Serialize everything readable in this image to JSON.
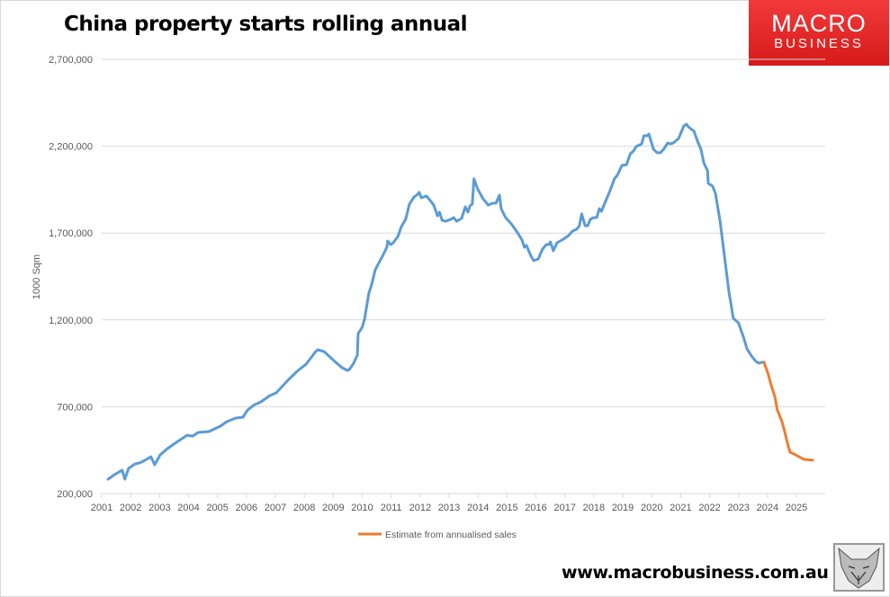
{
  "chart_data": {
    "type": "line",
    "title": "China property starts rolling annual",
    "ylabel": "1000 Sqm",
    "xlabel": "",
    "ylim": [
      200000,
      2700000
    ],
    "yticks": [
      200000,
      700000,
      1200000,
      1700000,
      2200000,
      2700000
    ],
    "ytick_labels": [
      "200,000",
      "700,000",
      "1,200,000",
      "1,700,000",
      "2,200,000",
      "2,700,000"
    ],
    "xlim": [
      2001,
      2026
    ],
    "xtick_labels": [
      "2001",
      "2002",
      "2003",
      "2004",
      "2005",
      "2006",
      "2007",
      "2008",
      "2009",
      "2010",
      "2011",
      "2012",
      "2013",
      "2014",
      "2015",
      "2016",
      "2017",
      "2018",
      "2019",
      "2020",
      "2021",
      "2022",
      "2023",
      "2024",
      "2025"
    ],
    "grid": "horizontal",
    "legend_position": "bottom",
    "series": [
      {
        "color": "#5b9bd5",
        "x": [
          2001.22,
          2001.44,
          2001.71,
          2001.8,
          2001.93,
          2002.15,
          2002.3,
          2002.5,
          2002.7,
          2002.83,
          2003.02,
          2003.27,
          2003.58,
          2003.95,
          2004.14,
          2004.33,
          2004.7,
          2005.1,
          2005.32,
          2005.63,
          2005.88,
          2006.04,
          2006.28,
          2006.5,
          2006.81,
          2007.03,
          2007.43,
          2007.75,
          2008.06,
          2008.37,
          2008.46,
          2008.68,
          2009.05,
          2009.3,
          2009.49,
          2009.55,
          2009.7,
          2009.83,
          2009.86,
          2010.0,
          2010.08,
          2010.23,
          2010.33,
          2010.45,
          2010.7,
          2010.85,
          2010.88,
          2010.98,
          2011.07,
          2011.23,
          2011.35,
          2011.5,
          2011.63,
          2011.79,
          2011.88,
          2011.97,
          2012.04,
          2012.22,
          2012.35,
          2012.47,
          2012.6,
          2012.67,
          2012.76,
          2012.88,
          2013.06,
          2013.16,
          2013.26,
          2013.43,
          2013.56,
          2013.65,
          2013.72,
          2013.8,
          2013.86,
          2013.98,
          2014.17,
          2014.35,
          2014.5,
          2014.62,
          2014.74,
          2014.8,
          2014.95,
          2015.15,
          2015.33,
          2015.52,
          2015.6,
          2015.67,
          2015.83,
          2015.92,
          2016.08,
          2016.23,
          2016.36,
          2016.45,
          2016.5,
          2016.6,
          2016.73,
          2016.95,
          2017.13,
          2017.26,
          2017.41,
          2017.5,
          2017.58,
          2017.7,
          2017.79,
          2017.88,
          2018.0,
          2018.1,
          2018.19,
          2018.26,
          2018.38,
          2018.56,
          2018.71,
          2018.81,
          2018.97,
          2019.13,
          2019.26,
          2019.37,
          2019.46,
          2019.65,
          2019.73,
          2019.84,
          2019.9,
          2020.06,
          2020.19,
          2020.3,
          2020.43,
          2020.55,
          2020.65,
          2020.74,
          2020.93,
          2021.11,
          2021.2,
          2021.27,
          2021.46,
          2021.58,
          2021.7,
          2021.8,
          2021.93,
          2021.95,
          2022.1,
          2022.2,
          2022.36,
          2022.52,
          2022.67,
          2022.82,
          2023.0,
          2023.1,
          2023.17,
          2023.29,
          2023.45,
          2023.6,
          2023.7,
          2023.82,
          2023.88
        ],
        "y": [
          283000,
          309000,
          335000,
          283000,
          345000,
          371000,
          376000,
          392000,
          412000,
          366000,
          423000,
          459000,
          495000,
          536000,
          531000,
          552000,
          557000,
          588000,
          614000,
          635000,
          640000,
          681000,
          712000,
          728000,
          764000,
          780000,
          852000,
          904000,
          945000,
          1013000,
          1028000,
          1018000,
          961000,
          925000,
          909000,
          914000,
          950000,
          997000,
          1121000,
          1158000,
          1204000,
          1354000,
          1406000,
          1489000,
          1567000,
          1618000,
          1654000,
          1634000,
          1644000,
          1680000,
          1737000,
          1779000,
          1867000,
          1908000,
          1918000,
          1934000,
          1903000,
          1913000,
          1887000,
          1861000,
          1799000,
          1820000,
          1773000,
          1768000,
          1779000,
          1789000,
          1768000,
          1784000,
          1851000,
          1820000,
          1856000,
          1867000,
          2012000,
          1955000,
          1898000,
          1861000,
          1872000,
          1872000,
          1918000,
          1841000,
          1789000,
          1753000,
          1711000,
          1660000,
          1618000,
          1629000,
          1567000,
          1541000,
          1551000,
          1608000,
          1634000,
          1634000,
          1649000,
          1598000,
          1644000,
          1665000,
          1686000,
          1711000,
          1722000,
          1742000,
          1810000,
          1742000,
          1742000,
          1779000,
          1789000,
          1789000,
          1841000,
          1825000,
          1872000,
          1944000,
          2012000,
          2032000,
          2089000,
          2094000,
          2156000,
          2172000,
          2198000,
          2213000,
          2260000,
          2260000,
          2270000,
          2182000,
          2162000,
          2162000,
          2187000,
          2218000,
          2213000,
          2218000,
          2244000,
          2317000,
          2327000,
          2311000,
          2286000,
          2229000,
          2182000,
          2105000,
          2058000,
          1986000,
          1970000,
          1929000,
          1768000,
          1556000,
          1359000,
          1209000,
          1183000,
          1132000,
          1101000,
          1033000,
          992000,
          961000,
          951000,
          956000,
          956000
        ]
      },
      {
        "name": "Estimate from annualised sales",
        "color": "#ed7d31",
        "x": [
          2023.88,
          2024.03,
          2024.13,
          2024.25,
          2024.34,
          2024.5,
          2024.6,
          2024.72,
          2024.78,
          2024.97,
          2025.25,
          2025.56
        ],
        "y": [
          956000,
          883000,
          821000,
          759000,
          681000,
          614000,
          552000,
          469000,
          438000,
          423000,
          397000,
          392000
        ]
      }
    ]
  },
  "branding": {
    "logo_line1": "MACRO",
    "logo_line2": "BUSINESS",
    "url": "www.macrobusiness.com.au",
    "logo_color": "#e0201f"
  }
}
